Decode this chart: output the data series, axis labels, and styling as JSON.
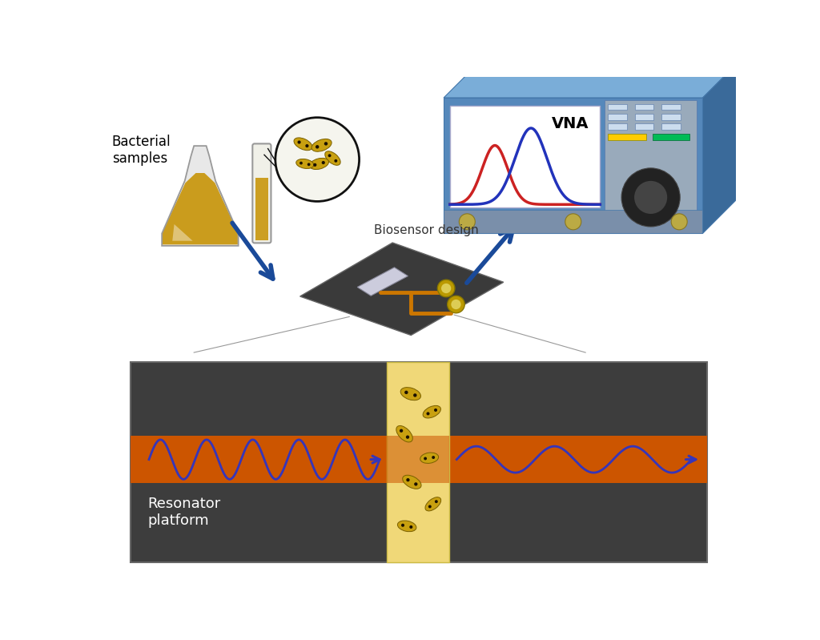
{
  "bg_color": "#ffffff",
  "bacterial_label": "Bacterial\nsamples",
  "biosensor_label": "Biosensor design",
  "resonator_label": "Resonator\nplatform",
  "vna_label": "VNA",
  "flask_glass_color": "#e8e8e8",
  "flask_glass_edge": "#999999",
  "flask_liquid_color": "#c8960c",
  "tube_glass_color": "#f0f0e8",
  "tube_glass_edge": "#999999",
  "tube_liquid_color": "#c8960c",
  "bacteria_body_color": "#c8a010",
  "bacteria_edge_color": "#7a6000",
  "bacteria_dot_color": "#1a1000",
  "zoom_bg": "#f5f5ee",
  "zoom_edge": "#111111",
  "wave_color": "#3535bb",
  "arrow_color": "#1a4a99",
  "resonator_bg_color": "#3d3d3d",
  "resonator_stripe_color": "#cc5500",
  "bacteria_channel_color": "#f0d878",
  "vna_top_color": "#6699cc",
  "vna_right_color": "#3a6a9a",
  "vna_front_color": "#5588bb",
  "vna_screen_bg": "#ffffff",
  "vna_panel_color": "#8899aa",
  "vna_bottom_strip": "#7788aa",
  "red_peak_color": "#cc2222",
  "blue_peak_color": "#2233bb",
  "biosensor_board_color": "#3a3a3a",
  "biosensor_trace_color": "#cc7700",
  "biosensor_connector_color": "#bb9900"
}
